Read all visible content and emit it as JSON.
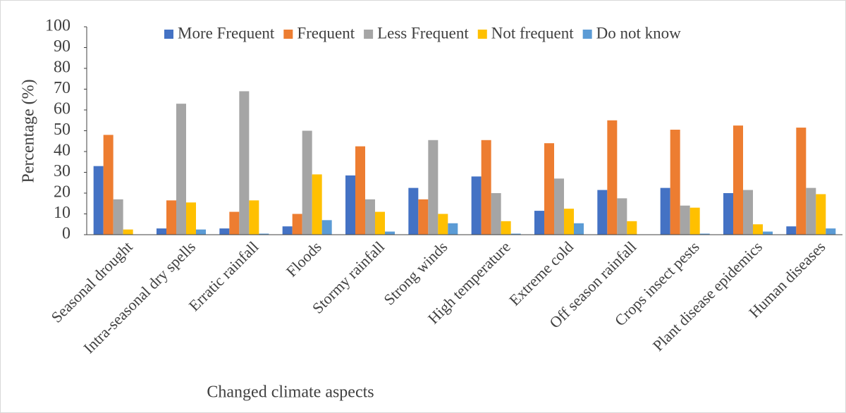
{
  "chart_data": {
    "type": "bar",
    "y_label": "Percentage (%)",
    "x_label": "Changed climate aspects",
    "categories": [
      "Seasonal drought",
      "Intra-seasonal dry spells",
      "Erratic rainfall",
      "Floods",
      "Stormy rainfall",
      "Strong winds",
      "High temperature",
      "Extreme cold",
      "Off season rainfall",
      "Crops insect pests",
      "Plant disease epidemics",
      "Human diseases"
    ],
    "series": [
      {
        "name": "More Frequent",
        "color": "#4472c4",
        "values": [
          33,
          3,
          3,
          4,
          28.5,
          22.5,
          28,
          11.5,
          21.5,
          22.5,
          20,
          4
        ]
      },
      {
        "name": "Frequent",
        "color": "#ed7d31",
        "values": [
          48,
          16.5,
          11,
          10,
          42.5,
          17,
          45.5,
          44,
          55,
          50.5,
          52.5,
          51.5
        ]
      },
      {
        "name": "Less Frequent",
        "color": "#a5a5a5",
        "values": [
          17,
          63,
          69,
          50,
          17,
          45.5,
          20,
          27,
          17.5,
          14,
          21.5,
          22.5
        ]
      },
      {
        "name": "Not frequent",
        "color": "#ffc000",
        "values": [
          2.5,
          15.5,
          16.5,
          29,
          11,
          10,
          6.5,
          12.5,
          6.5,
          13,
          5,
          19.5
        ]
      },
      {
        "name": "Do not know",
        "color": "#5b9bd5",
        "values": [
          0,
          2.5,
          0.5,
          7,
          1.5,
          5.5,
          0.5,
          5.5,
          0,
          0.5,
          1.5,
          3
        ]
      }
    ],
    "ylim": [
      0,
      100
    ],
    "yticks": [
      0,
      10,
      20,
      30,
      40,
      50,
      60,
      70,
      80,
      90,
      100
    ],
    "legend": "top"
  }
}
